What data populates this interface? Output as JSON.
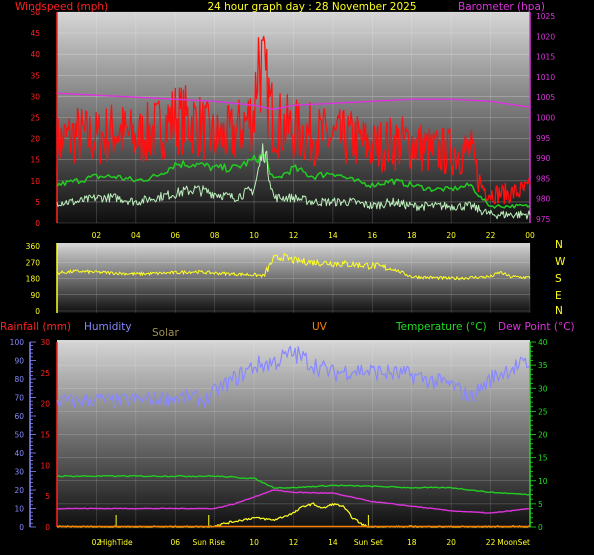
{
  "header": {
    "left": "Windspeed (mph)",
    "center": "24 hour graph day : 28 November 2025",
    "right": "Barometer (hpa)"
  },
  "panel2": {
    "compass": [
      "N",
      "W",
      "S",
      "E",
      "N"
    ]
  },
  "panel3": {
    "labels": {
      "rainfall": "Rainfall (mm)",
      "humidity": "Humidity",
      "solar": "Solar",
      "uv": "UV",
      "temperature": "Temperature (°C)",
      "dewpoint": "Dew Point (°C)"
    },
    "events": [
      {
        "label": "HighTide",
        "hour": 3.0
      },
      {
        "label": "Sun Rise",
        "hour": 7.7
      },
      {
        "label": "Sun Set",
        "hour": 15.8
      },
      {
        "label": "MoonSet",
        "hour": 24.0
      }
    ]
  },
  "colors": {
    "bg": "#000000",
    "plot_top": "#d6d6d6",
    "plot_bottom": "#0e0e0e",
    "red": "#ff1010",
    "green": "#22cc22",
    "lightgreen": "#bbeebb",
    "magenta": "#dd33dd",
    "yellow": "#ffff22",
    "blue": "#8888ff",
    "gust_label": "#ff2222",
    "baro_label": "#dd33dd",
    "temp_axis": "#22dd22",
    "solar_label": "#a09050",
    "uv_label": "#ff8000"
  },
  "chart_data": [
    {
      "type": "line",
      "x_ticks": [
        "02",
        "04",
        "06",
        "08",
        "10",
        "12",
        "14",
        "16",
        "18",
        "20",
        "22",
        "00"
      ],
      "y_left_ticks": [
        "0",
        "5",
        "10",
        "15",
        "20",
        "25",
        "30",
        "35",
        "40",
        "45",
        "50"
      ],
      "y_right_ticks": [
        "975",
        "980",
        "985",
        "990",
        "995",
        "1000",
        "1005",
        "1010",
        "1015",
        "1020",
        "1025"
      ],
      "ylim_left": [
        0,
        50
      ],
      "ylim_right": [
        974,
        1026
      ],
      "series": [
        {
          "key": "gust",
          "color": "#ff1010",
          "x": [
            0,
            1,
            2,
            3,
            4,
            5,
            6,
            7,
            8,
            9,
            10,
            10.2,
            11,
            12,
            13,
            14,
            15,
            16,
            17,
            18,
            19,
            20,
            21,
            21.5,
            22,
            23,
            24
          ],
          "y": [
            19,
            21,
            20,
            22,
            20,
            22,
            25,
            24,
            20,
            21,
            26,
            40,
            24,
            22,
            21,
            20,
            20,
            18,
            19,
            19,
            17,
            17,
            17,
            9,
            7,
            7,
            8
          ]
        },
        {
          "key": "average",
          "color": "#22cc22",
          "x": [
            0,
            1,
            2,
            3,
            4,
            5,
            6,
            7,
            8,
            9,
            10,
            10.5,
            11,
            12,
            13,
            14,
            15,
            16,
            17,
            18,
            19,
            20,
            21,
            21.5,
            22,
            23,
            24
          ],
          "y": [
            9,
            10,
            11,
            11,
            10,
            11,
            14,
            14,
            13,
            13,
            15,
            16,
            10,
            13,
            11,
            12,
            10,
            9,
            10,
            9,
            8,
            8,
            9,
            6,
            4,
            4,
            4
          ]
        },
        {
          "key": "wind",
          "color": "#bbeebb",
          "x": [
            0,
            1,
            2,
            3,
            4,
            5,
            6,
            7,
            8,
            9,
            10,
            10.5,
            11,
            12,
            13,
            14,
            15,
            16,
            17,
            18,
            19,
            20,
            21,
            21.5,
            22,
            23,
            24
          ],
          "y": [
            5,
            5,
            6,
            6,
            5,
            6,
            7,
            8,
            7,
            6,
            8,
            18,
            6,
            6,
            5,
            5,
            5,
            4,
            5,
            4,
            4,
            4,
            4,
            3,
            2,
            2,
            2
          ]
        },
        {
          "key": "barometer",
          "color": "#dd33dd",
          "axis": "right",
          "x": [
            0,
            2,
            4,
            6,
            8,
            10,
            11,
            12,
            14,
            16,
            18,
            20,
            22,
            24
          ],
          "y": [
            1006,
            1005.5,
            1005,
            1004.5,
            1004,
            1003,
            1002,
            1003,
            1003.5,
            1004,
            1004.5,
            1004.5,
            1004,
            1002.5
          ]
        }
      ]
    },
    {
      "type": "line",
      "y_ticks": [
        "0",
        "90",
        "180",
        "270",
        "360"
      ],
      "ylim": [
        0,
        360
      ],
      "series": [
        {
          "key": "direction",
          "color": "#ffff22",
          "x": [
            0,
            1,
            2,
            3,
            4,
            5,
            6,
            7,
            8,
            9,
            10,
            10.5,
            11,
            11.5,
            12,
            13,
            14,
            15,
            16,
            17,
            18,
            19,
            20,
            21,
            22,
            22.5,
            23,
            24
          ],
          "y": [
            210,
            220,
            215,
            210,
            205,
            208,
            212,
            218,
            210,
            205,
            200,
            195,
            290,
            300,
            280,
            270,
            265,
            258,
            250,
            235,
            190,
            185,
            180,
            185,
            190,
            215,
            190,
            185
          ]
        }
      ]
    },
    {
      "type": "line",
      "x_ticks": [
        "02",
        "06",
        "10",
        "12",
        "14",
        "18",
        "20",
        "22"
      ],
      "y_humidity_ticks": [
        "0",
        "10",
        "20",
        "30",
        "40",
        "50",
        "60",
        "70",
        "80",
        "90",
        "100"
      ],
      "y_rain_ticks": [
        "0",
        "5",
        "10",
        "15",
        "20",
        "25",
        "30"
      ],
      "y_temp_ticks": [
        "0",
        "5",
        "10",
        "15",
        "20",
        "25",
        "30",
        "35",
        "40"
      ],
      "ylim_humidity": [
        0,
        100
      ],
      "ylim_rain": [
        0,
        30
      ],
      "ylim_temp": [
        0,
        40
      ],
      "series": [
        {
          "key": "humidity",
          "color": "#8888ff",
          "axis": "humidity",
          "x": [
            0,
            1,
            2,
            3,
            4,
            5,
            6,
            7,
            7.5,
            8,
            9,
            10,
            11,
            12,
            13,
            14,
            15,
            16,
            17,
            18,
            19,
            20,
            21,
            22,
            23,
            24
          ],
          "y": [
            68,
            68,
            69,
            68,
            69,
            69,
            70,
            70,
            68,
            73,
            80,
            87,
            89,
            94,
            88,
            83,
            85,
            84,
            83,
            82,
            79,
            77,
            70,
            80,
            86,
            88
          ]
        },
        {
          "key": "temperature",
          "color": "#22cc22",
          "axis": "temp",
          "x": [
            0,
            2,
            4,
            6,
            8,
            10,
            11,
            12,
            14,
            16,
            18,
            20,
            22,
            24
          ],
          "y": [
            11,
            11,
            11,
            11,
            11,
            10.5,
            8.5,
            8.5,
            9,
            8.8,
            8.5,
            8.5,
            7.5,
            7
          ]
        },
        {
          "key": "dewpoint",
          "color": "#dd33dd",
          "axis": "temp",
          "x": [
            0,
            2,
            4,
            6,
            8,
            9,
            10,
            11,
            12,
            14,
            16,
            18,
            20,
            22,
            24
          ],
          "y": [
            4,
            4,
            4,
            4,
            4,
            5,
            6.5,
            8,
            7.5,
            7.3,
            5.5,
            4.5,
            3.5,
            3,
            4
          ]
        },
        {
          "key": "solar",
          "color": "#ffff22",
          "axis": "temp",
          "x": [
            0,
            7.7,
            8,
            9,
            10,
            11,
            12,
            12.5,
            13,
            13.5,
            14,
            14.5,
            15,
            15.5,
            15.8,
            24
          ],
          "y": [
            0,
            0,
            0.3,
            1.2,
            2,
            1.5,
            3,
            4.5,
            5,
            4,
            5,
            4.5,
            2,
            0.5,
            0,
            0
          ]
        },
        {
          "key": "uv",
          "color": "#ff8000",
          "axis": "temp",
          "x": [
            0,
            24
          ],
          "y": [
            0.1,
            0.1
          ]
        }
      ]
    }
  ]
}
